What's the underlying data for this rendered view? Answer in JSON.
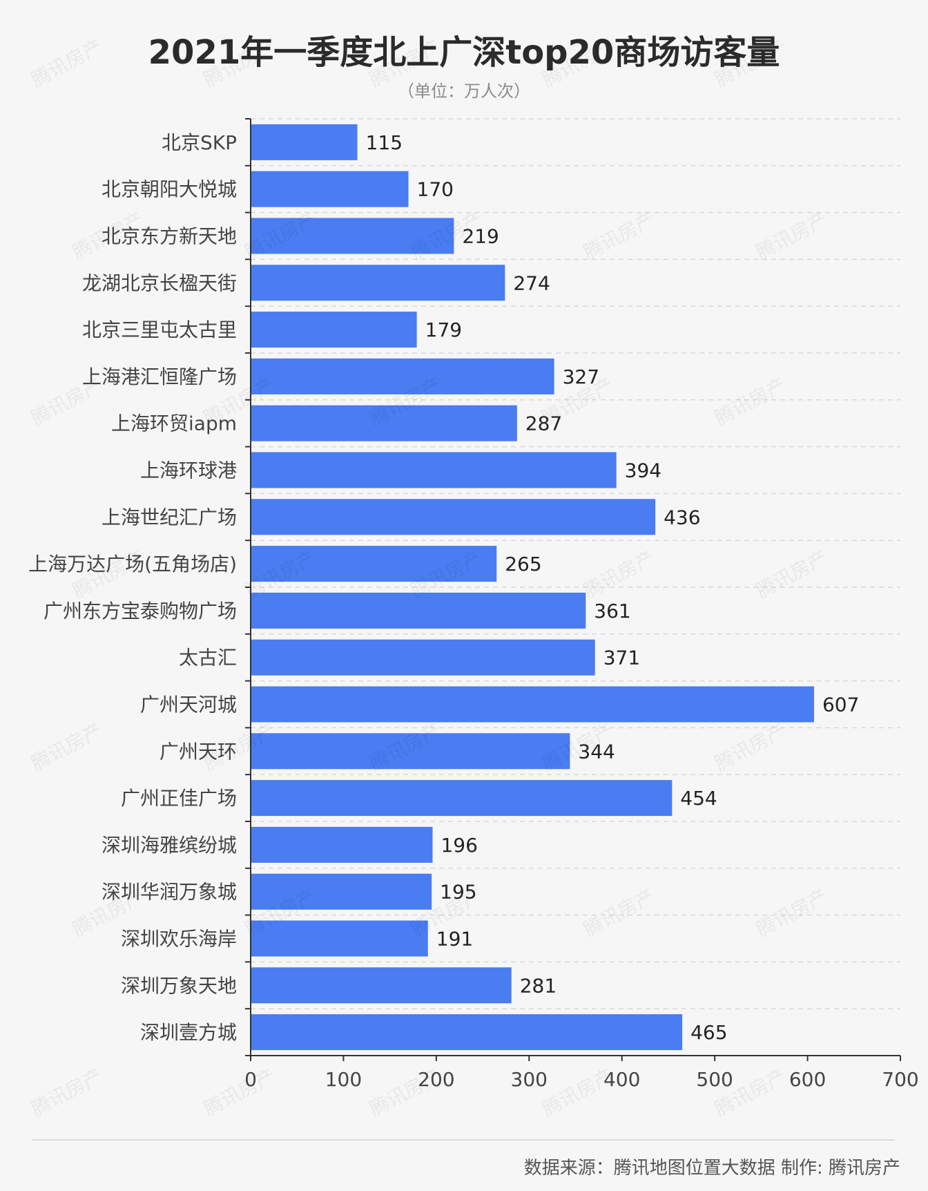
{
  "chart_data": {
    "type": "bar",
    "orientation": "horizontal",
    "title": "2021年一季度北上广深top20商场访客量",
    "subtitle": "（单位：万人次）",
    "categories": [
      "北京SKP",
      "北京朝阳大悦城",
      "北京东方新天地",
      "龙湖北京长楹天街",
      "北京三里屯太古里",
      "上海港汇恒隆广场",
      "上海环贸iapm",
      "上海环球港",
      "上海世纪汇广场",
      "上海万达广场(五角场店)",
      "广州东方宝泰购物广场",
      "太古汇",
      "广州天河城",
      "广州天环",
      "广州正佳广场",
      "深圳海雅缤纷城",
      "深圳华润万象城",
      "深圳欢乐海岸",
      "深圳万象天地",
      "深圳壹方城"
    ],
    "values": [
      115,
      170,
      219,
      274,
      179,
      327,
      287,
      394,
      436,
      265,
      361,
      371,
      607,
      344,
      454,
      196,
      195,
      191,
      281,
      465
    ],
    "xlim": [
      0,
      700
    ],
    "xticks": [
      0,
      100,
      200,
      300,
      400,
      500,
      600,
      700
    ],
    "grid": true,
    "legend": false,
    "bar_color": "#4a7cf2"
  },
  "footer": {
    "source": "数据来源：腾讯地图位置大数据  制作: 腾讯房产"
  },
  "watermark_text": "腾讯房产"
}
